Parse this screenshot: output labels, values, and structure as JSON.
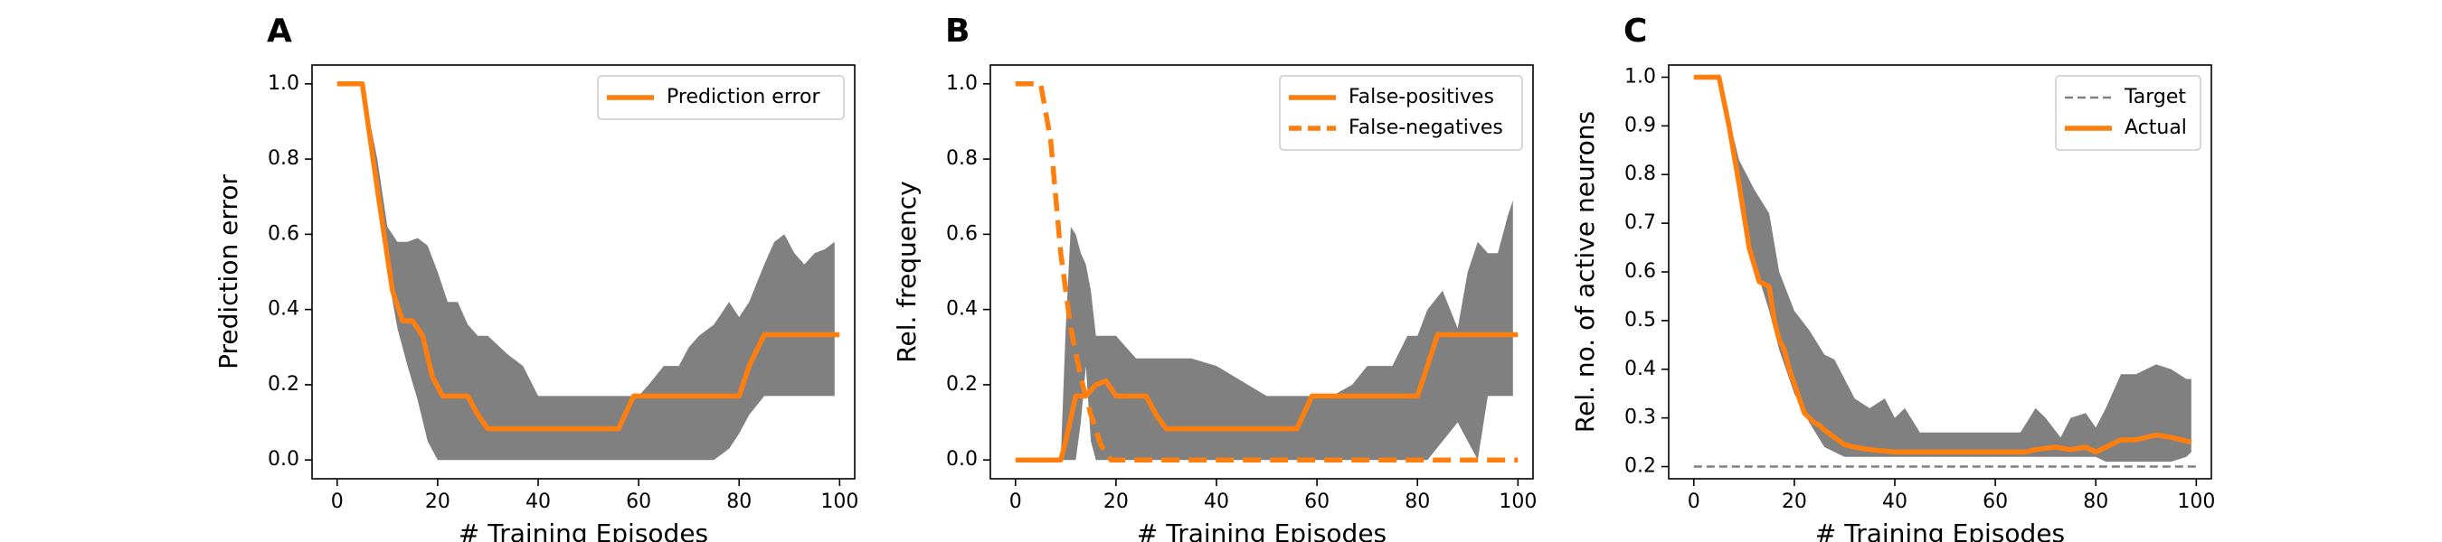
{
  "colors": {
    "accent": "#ff7f0e",
    "band": "#808080",
    "target": "#808080",
    "frame": "#000000"
  },
  "chart_data": [
    {
      "panel_letter": "A",
      "type": "line",
      "xlabel": "# Training Episodes",
      "ylabel": "Prediction error",
      "xlim": [
        -5,
        103
      ],
      "ylim": [
        -0.05,
        1.05
      ],
      "xticks": [
        0,
        20,
        40,
        60,
        80,
        100
      ],
      "yticks": [
        0.0,
        0.2,
        0.4,
        0.6,
        0.8,
        1.0
      ],
      "ytick_labels": [
        "0.0",
        "0.2",
        "0.4",
        "0.6",
        "0.8",
        "1.0"
      ],
      "grid": false,
      "legend": "top-right",
      "series": [
        {
          "name": "Prediction error",
          "style": "solid",
          "x": [
            0,
            5,
            8,
            11,
            13,
            15,
            17,
            19,
            21,
            23,
            26,
            28,
            30,
            33,
            40,
            50,
            56,
            59,
            61,
            80,
            82,
            85,
            100
          ],
          "y": [
            1.0,
            1.0,
            0.72,
            0.45,
            0.37,
            0.37,
            0.33,
            0.22,
            0.17,
            0.17,
            0.17,
            0.12,
            0.083,
            0.083,
            0.083,
            0.083,
            0.083,
            0.17,
            0.17,
            0.17,
            0.25,
            0.333,
            0.333
          ]
        }
      ],
      "band": {
        "x": [
          0,
          5,
          8,
          10,
          12,
          14,
          16,
          18,
          20,
          22,
          24,
          26,
          28,
          30,
          34,
          37,
          40,
          45,
          50,
          55,
          58,
          60,
          62,
          65,
          68,
          70,
          72,
          75,
          78,
          80,
          82,
          85,
          87,
          89,
          91,
          93,
          95,
          97,
          99
        ],
        "upper": [
          1.0,
          1.0,
          0.8,
          0.62,
          0.58,
          0.58,
          0.59,
          0.57,
          0.5,
          0.42,
          0.42,
          0.36,
          0.33,
          0.33,
          0.28,
          0.25,
          0.17,
          0.17,
          0.17,
          0.17,
          0.17,
          0.17,
          0.2,
          0.25,
          0.25,
          0.3,
          0.33,
          0.36,
          0.42,
          0.38,
          0.42,
          0.52,
          0.58,
          0.6,
          0.55,
          0.52,
          0.55,
          0.56,
          0.58
        ],
        "lower": [
          1.0,
          1.0,
          0.72,
          0.5,
          0.35,
          0.25,
          0.16,
          0.05,
          0.0,
          0.0,
          0.0,
          0.0,
          0.0,
          0.0,
          0.0,
          0.0,
          0.0,
          0.0,
          0.0,
          0.0,
          0.0,
          0.0,
          0.0,
          0.0,
          0.0,
          0.0,
          0.0,
          0.0,
          0.03,
          0.07,
          0.12,
          0.17,
          0.17,
          0.17,
          0.17,
          0.17,
          0.17,
          0.17,
          0.17
        ]
      }
    },
    {
      "panel_letter": "B",
      "type": "line",
      "xlabel": "# Training Episodes",
      "ylabel": "Rel. frequency",
      "xlim": [
        -5,
        103
      ],
      "ylim": [
        -0.05,
        1.05
      ],
      "xticks": [
        0,
        20,
        40,
        60,
        80,
        100
      ],
      "yticks": [
        0.0,
        0.2,
        0.4,
        0.6,
        0.8,
        1.0
      ],
      "ytick_labels": [
        "0.0",
        "0.2",
        "0.4",
        "0.6",
        "0.8",
        "1.0"
      ],
      "grid": false,
      "legend": "top-right",
      "series": [
        {
          "name": "False-positives",
          "style": "solid",
          "x": [
            0,
            9,
            10,
            12,
            14,
            16,
            18,
            20,
            22,
            26,
            28,
            30,
            33,
            40,
            56,
            59,
            61,
            80,
            82,
            84,
            100
          ],
          "y": [
            0.0,
            0.0,
            0.05,
            0.17,
            0.17,
            0.2,
            0.21,
            0.17,
            0.17,
            0.17,
            0.12,
            0.083,
            0.083,
            0.083,
            0.083,
            0.17,
            0.17,
            0.17,
            0.25,
            0.333,
            0.333
          ]
        },
        {
          "name": "False-negatives",
          "style": "dashed",
          "x": [
            0,
            5,
            7,
            9,
            11,
            13,
            15,
            17,
            19,
            20,
            100
          ],
          "y": [
            1.0,
            1.0,
            0.85,
            0.55,
            0.35,
            0.22,
            0.12,
            0.04,
            0.0,
            0.0,
            0.0
          ]
        }
      ],
      "band": {
        "x": [
          0,
          9,
          10,
          11,
          12,
          13,
          14,
          15,
          16,
          18,
          20,
          22,
          24,
          27,
          30,
          35,
          40,
          50,
          55,
          58,
          60,
          63,
          67,
          70,
          75,
          78,
          80,
          82,
          85,
          88,
          90,
          92,
          94,
          96,
          98,
          99
        ],
        "upper": [
          0.0,
          0.0,
          0.35,
          0.62,
          0.6,
          0.55,
          0.52,
          0.45,
          0.33,
          0.33,
          0.33,
          0.3,
          0.27,
          0.27,
          0.27,
          0.27,
          0.25,
          0.17,
          0.17,
          0.17,
          0.17,
          0.17,
          0.2,
          0.25,
          0.25,
          0.33,
          0.33,
          0.4,
          0.45,
          0.35,
          0.5,
          0.58,
          0.55,
          0.55,
          0.65,
          0.69
        ],
        "lower": [
          0.0,
          0.0,
          0.0,
          0.0,
          0.0,
          0.1,
          0.25,
          0.05,
          0.0,
          0.0,
          0.0,
          0.0,
          0.0,
          0.0,
          0.0,
          0.0,
          0.0,
          0.0,
          0.0,
          0.0,
          0.0,
          0.0,
          0.0,
          0.0,
          0.0,
          0.0,
          0.0,
          0.0,
          0.05,
          0.1,
          0.05,
          0.0,
          0.17,
          0.17,
          0.17,
          0.17
        ]
      }
    },
    {
      "panel_letter": "C",
      "type": "line",
      "xlabel": "# Training Episodes",
      "ylabel": "Rel. no. of active neurons",
      "xlim": [
        -5,
        103
      ],
      "ylim": [
        0.175,
        1.025
      ],
      "xticks": [
        0,
        20,
        40,
        60,
        80,
        100
      ],
      "yticks": [
        0.2,
        0.3,
        0.4,
        0.5,
        0.6,
        0.7,
        0.8,
        0.9,
        1.0
      ],
      "ytick_labels": [
        "0.2",
        "0.3",
        "0.4",
        "0.5",
        "0.6",
        "0.7",
        "0.8",
        "0.9",
        "1.0"
      ],
      "grid": false,
      "legend": "top-right",
      "series": [
        {
          "name": "Target",
          "style": "dashed-thin",
          "x": [
            0,
            100
          ],
          "y": [
            0.2,
            0.2
          ]
        },
        {
          "name": "Actual",
          "style": "solid",
          "x": [
            0,
            5,
            7,
            9,
            11,
            13,
            15,
            16,
            17,
            18,
            19,
            20,
            21,
            22,
            24,
            25,
            26,
            28,
            30,
            32,
            35,
            40,
            50,
            60,
            66,
            68,
            72,
            75,
            78,
            80,
            82,
            85,
            88,
            92,
            95,
            99
          ],
          "y": [
            1.0,
            1.0,
            0.9,
            0.78,
            0.65,
            0.58,
            0.57,
            0.5,
            0.46,
            0.44,
            0.4,
            0.37,
            0.34,
            0.31,
            0.29,
            0.285,
            0.275,
            0.26,
            0.245,
            0.24,
            0.235,
            0.23,
            0.23,
            0.23,
            0.23,
            0.235,
            0.24,
            0.235,
            0.24,
            0.23,
            0.24,
            0.255,
            0.255,
            0.265,
            0.26,
            0.25
          ]
        }
      ],
      "band": {
        "x": [
          0,
          5,
          9,
          12,
          15,
          17,
          20,
          23,
          26,
          28,
          30,
          32,
          35,
          38,
          40,
          42,
          45,
          50,
          55,
          60,
          65,
          68,
          70,
          73,
          75,
          78,
          80,
          82,
          85,
          88,
          92,
          95,
          98,
          99
        ],
        "upper": [
          1.0,
          1.0,
          0.83,
          0.77,
          0.72,
          0.6,
          0.52,
          0.48,
          0.43,
          0.42,
          0.38,
          0.34,
          0.32,
          0.34,
          0.3,
          0.32,
          0.27,
          0.27,
          0.27,
          0.27,
          0.27,
          0.32,
          0.3,
          0.26,
          0.3,
          0.31,
          0.28,
          0.32,
          0.39,
          0.39,
          0.41,
          0.4,
          0.38,
          0.38
        ],
        "lower": [
          1.0,
          1.0,
          0.78,
          0.62,
          0.52,
          0.44,
          0.35,
          0.29,
          0.24,
          0.23,
          0.22,
          0.22,
          0.22,
          0.22,
          0.22,
          0.22,
          0.22,
          0.22,
          0.22,
          0.22,
          0.22,
          0.22,
          0.22,
          0.22,
          0.22,
          0.22,
          0.22,
          0.21,
          0.21,
          0.21,
          0.21,
          0.21,
          0.22,
          0.23
        ]
      }
    }
  ]
}
